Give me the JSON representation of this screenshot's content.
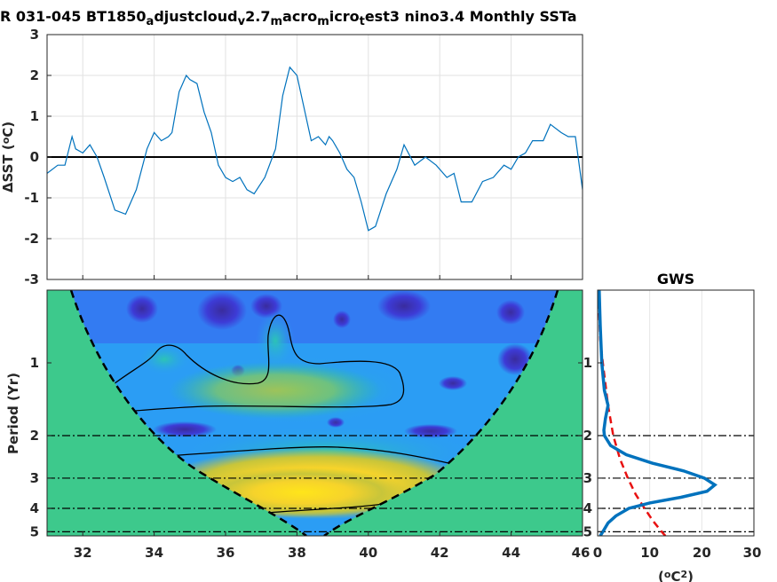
{
  "chart_data": [
    {
      "type": "line",
      "title_parts": [
        {
          "t": "R 031-045 BT1850"
        },
        {
          "t": "a",
          "sub": true
        },
        {
          "t": "djustcloud"
        },
        {
          "t": "v",
          "sub": true
        },
        {
          "t": "2.7"
        },
        {
          "t": "m",
          "sub": true
        },
        {
          "t": "acro"
        },
        {
          "t": "m",
          "sub": true
        },
        {
          "t": "icro"
        },
        {
          "t": "t",
          "sub": true
        },
        {
          "t": "est3 nino3.4 Monthly SSTa"
        }
      ],
      "ylabel_prefix": "ΔSST (",
      "ylabel_sup": "o",
      "ylabel_suffix": "C)",
      "xlim": [
        31,
        46
      ],
      "ylim": [
        -3,
        3
      ],
      "yticks": [
        "3",
        "2",
        "1",
        "0",
        "-1",
        "-2",
        "-3"
      ],
      "ytick_values": [
        3,
        2,
        1,
        0,
        -1,
        -2,
        -3
      ],
      "grid": true,
      "zero_line": true,
      "series": [
        {
          "color": "#0072bd",
          "x": [
            31.0,
            31.3,
            31.5,
            31.7,
            31.8,
            32.0,
            32.2,
            32.4,
            32.6,
            32.9,
            33.2,
            33.5,
            33.8,
            34.0,
            34.2,
            34.4,
            34.5,
            34.7,
            34.9,
            35.0,
            35.2,
            35.4,
            35.6,
            35.8,
            36.0,
            36.2,
            36.4,
            36.6,
            36.8,
            37.1,
            37.4,
            37.6,
            37.8,
            38.0,
            38.2,
            38.4,
            38.6,
            38.8,
            38.9,
            39.0,
            39.2,
            39.4,
            39.6,
            39.8,
            40.0,
            40.2,
            40.5,
            40.8,
            41.0,
            41.3,
            41.6,
            41.9,
            42.2,
            42.4,
            42.6,
            42.9,
            43.2,
            43.5,
            43.8,
            44.0,
            44.2,
            44.4,
            44.6,
            44.9,
            45.1,
            45.4,
            45.6,
            45.8,
            46.0
          ],
          "y": [
            -0.4,
            -0.2,
            -0.2,
            0.5,
            0.2,
            0.1,
            0.3,
            0.0,
            -0.5,
            -1.3,
            -1.4,
            -0.8,
            0.2,
            0.6,
            0.4,
            0.5,
            0.6,
            1.6,
            2.0,
            1.9,
            1.8,
            1.1,
            0.6,
            -0.2,
            -0.5,
            -0.6,
            -0.5,
            -0.8,
            -0.9,
            -0.5,
            0.2,
            1.5,
            2.2,
            2.0,
            1.2,
            0.4,
            0.5,
            0.3,
            0.5,
            0.4,
            0.1,
            -0.3,
            -0.5,
            -1.1,
            -1.8,
            -1.7,
            -0.9,
            -0.3,
            0.3,
            -0.2,
            0.0,
            -0.2,
            -0.5,
            -0.4,
            -1.1,
            -1.1,
            -0.6,
            -0.5,
            -0.2,
            -0.3,
            0.0,
            0.1,
            0.4,
            0.4,
            0.8,
            0.6,
            0.5,
            0.5,
            -0.8
          ]
        }
      ]
    },
    {
      "type": "heatmap",
      "ylabel": "Period (Yr)",
      "xlim": [
        31,
        46
      ],
      "xticks": [
        "32",
        "34",
        "36",
        "38",
        "40",
        "42",
        "44",
        "46"
      ],
      "xtick_values": [
        32,
        34,
        36,
        38,
        40,
        42,
        44,
        46
      ],
      "yticks": [
        "1",
        "2",
        "3",
        "4",
        "5"
      ],
      "ytick_values": [
        1,
        2,
        3,
        4,
        5
      ],
      "yscale": "log2",
      "ylim": [
        0.5,
        5.2
      ],
      "ylim_note": "period axis increases downward",
      "guide_periods": [
        2,
        3,
        4,
        5
      ],
      "cone_of_influence": true
    },
    {
      "type": "line",
      "title": "GWS",
      "xlabel_prefix": "(",
      "xlabel_sup1": "o",
      "xlabel_mid": "C",
      "xlabel_sup2": "2",
      "xlabel_suffix": ")",
      "xlim": [
        0,
        30
      ],
      "xticks": [
        "0",
        "10",
        "20",
        "30"
      ],
      "xtick_values": [
        0,
        10,
        20,
        30
      ],
      "yticks": [
        "1",
        "2",
        "3",
        "4",
        "5"
      ],
      "ytick_values": [
        1,
        2,
        3,
        4,
        5
      ],
      "yscale": "log2",
      "ylim": [
        0.5,
        5.2
      ],
      "series": [
        {
          "style": "solid",
          "color": "#0072bd",
          "period": [
            0.5,
            0.7,
            1.0,
            1.3,
            1.5,
            1.7,
            1.9,
            2.0,
            2.2,
            2.4,
            2.6,
            2.8,
            3.0,
            3.2,
            3.4,
            3.6,
            3.8,
            4.0,
            4.3,
            4.6,
            5.0,
            5.2
          ],
          "power": [
            0.3,
            0.5,
            0.8,
            1.3,
            2.0,
            1.5,
            1.2,
            1.3,
            2.5,
            5.5,
            10.5,
            16.5,
            20.5,
            22.5,
            21.0,
            16.0,
            10.0,
            6.0,
            3.5,
            2.0,
            1.0,
            0.5
          ]
        },
        {
          "style": "dashed",
          "color": "#e81010",
          "period": [
            0.5,
            0.8,
            1.0,
            1.5,
            2.0,
            2.5,
            3.0,
            3.5,
            4.0,
            4.5,
            5.0,
            5.2
          ],
          "power": [
            0.1,
            0.5,
            1.0,
            2.0,
            3.0,
            4.3,
            5.8,
            7.3,
            9.0,
            10.6,
            12.3,
            13.0
          ]
        }
      ]
    }
  ]
}
